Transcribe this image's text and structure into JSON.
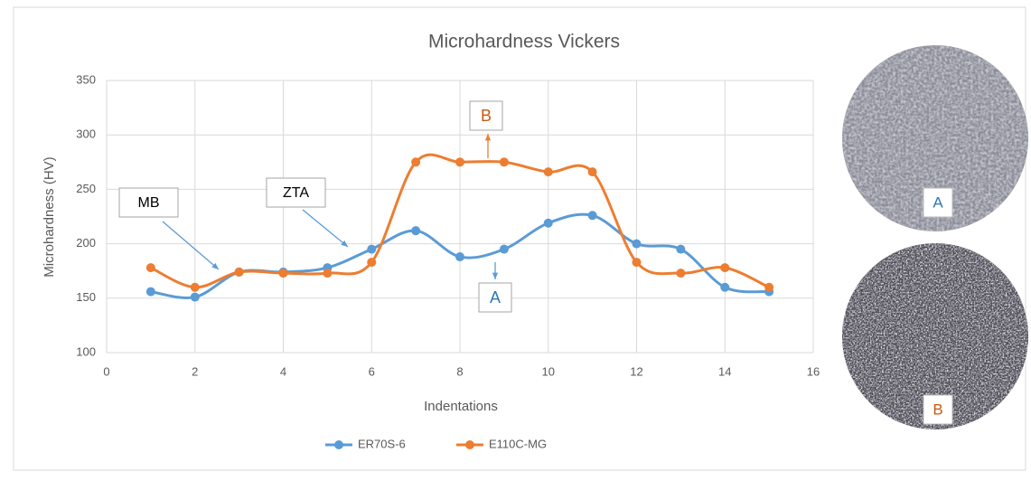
{
  "chart_data": {
    "type": "line",
    "title": "Microhardness Vickers",
    "x_label": "Indentations",
    "y_label": "Microhardness (HV)",
    "x": [
      1,
      2,
      3,
      4,
      5,
      6,
      7,
      8,
      9,
      10,
      11,
      12,
      13,
      14,
      15
    ],
    "series": [
      {
        "name": "ER70S-6",
        "color": "#5b9bd5",
        "values": [
          156,
          151,
          174,
          174,
          178,
          195,
          212,
          188,
          195,
          219,
          226,
          200,
          195,
          160,
          156
        ]
      },
      {
        "name": "E110C-MG",
        "color": "#ed7d31",
        "values": [
          178,
          160,
          174,
          173,
          173,
          183,
          275,
          275,
          275,
          266,
          266,
          183,
          173,
          178,
          160
        ]
      }
    ],
    "xlim": [
      0,
      16
    ],
    "xticks": [
      0,
      2,
      4,
      6,
      8,
      10,
      12,
      14,
      16
    ],
    "ylim": [
      100,
      350
    ],
    "yticks": [
      100,
      150,
      200,
      250,
      300,
      350
    ],
    "grid": true,
    "smooth": true,
    "legend": "bottom",
    "annotations": [
      "MB",
      "ZTA",
      "A",
      "B"
    ],
    "micrograph_labels": [
      "A",
      "B"
    ]
  }
}
